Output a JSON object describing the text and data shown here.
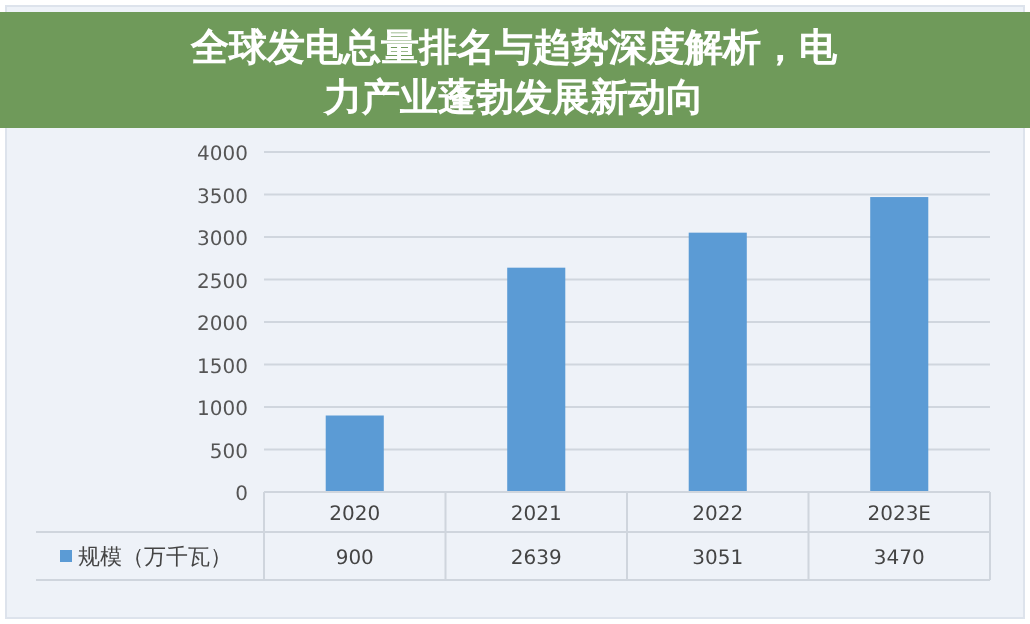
{
  "chart_data": {
    "type": "bar",
    "title": "全球发电总量排名与趋势深度解析，电力产业蓬勃发展新动向",
    "categories": [
      "2020",
      "2021",
      "2022",
      "2023E"
    ],
    "series": [
      {
        "name": "规模（万千瓦）",
        "color": "#5b9bd5",
        "values": [
          900,
          2639,
          3051,
          3470
        ]
      }
    ],
    "ylim": [
      0,
      4000
    ],
    "yticks": [
      0,
      500,
      1000,
      1500,
      2000,
      2500,
      3000,
      3500,
      4000
    ],
    "grid": "y",
    "data_labels": true,
    "legend": "bottom left"
  }
}
